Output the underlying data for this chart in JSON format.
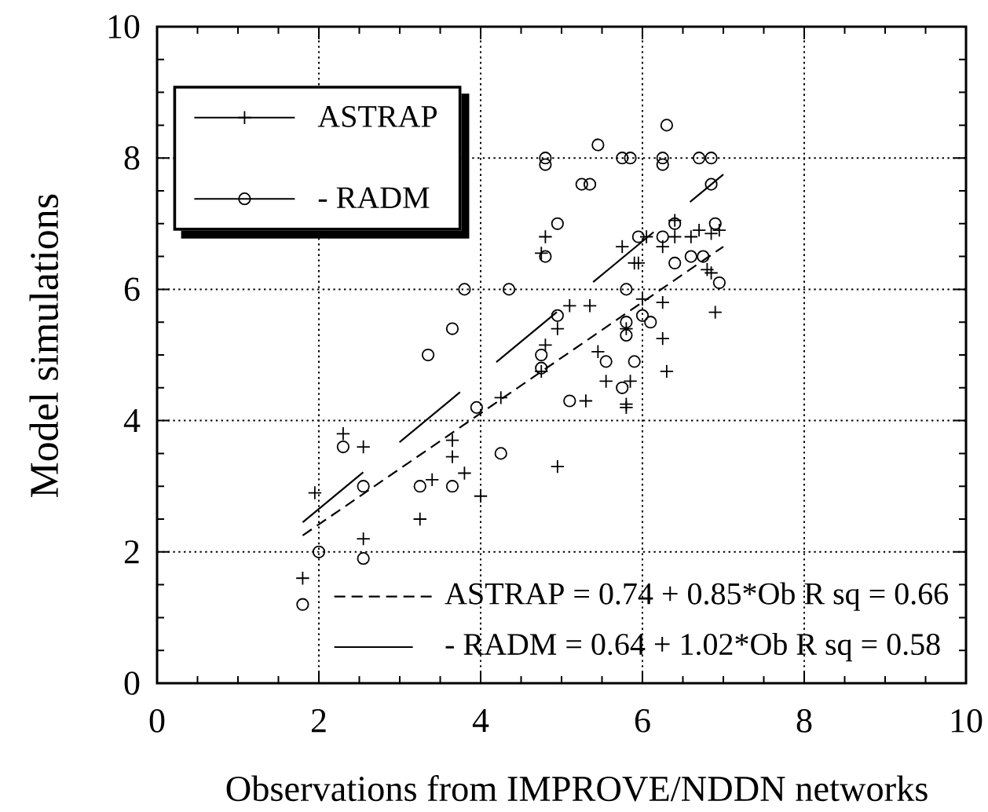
{
  "chart_data": {
    "type": "scatter",
    "xlabel": "Observations from IMPROVE/NDDN networks",
    "ylabel": "Model simulations",
    "xlim": [
      0,
      10
    ],
    "ylim": [
      0,
      10
    ],
    "xticks": [
      0,
      2,
      4,
      6,
      8,
      10
    ],
    "yticks": [
      0,
      2,
      4,
      6,
      8,
      10
    ],
    "grid": true,
    "legend": "top left",
    "annotations": [
      "ASTRAP = 0.74 + 0.85*Ob R sq = 0.66",
      "- RADM = 0.64 + 1.02*Ob R sq = 0.58"
    ],
    "series": [
      {
        "name": "ASTRAP",
        "color": "#000000",
        "marker": "cross",
        "x": [
          1.8,
          1.95,
          2.3,
          2.55,
          2.55,
          3.25,
          3.4,
          3.65,
          3.65,
          3.8,
          4.0,
          4.25,
          4.8,
          4.75,
          4.8,
          4.75,
          4.95,
          4.95,
          5.1,
          5.3,
          5.35,
          5.45,
          5.55,
          5.75,
          5.8,
          5.8,
          5.8,
          5.85,
          5.9,
          5.95,
          6.0,
          6.05,
          6.25,
          6.25,
          6.25,
          6.3,
          6.4,
          6.4,
          6.6,
          6.7,
          6.8,
          6.85,
          6.85,
          6.95,
          6.9
        ],
        "values": [
          1.6,
          2.9,
          3.8,
          3.6,
          2.2,
          2.5,
          3.1,
          3.7,
          3.45,
          3.2,
          2.85,
          4.35,
          6.8,
          6.55,
          5.15,
          4.75,
          3.3,
          5.4,
          5.75,
          4.3,
          5.75,
          5.05,
          4.6,
          6.65,
          4.25,
          4.2,
          5.4,
          4.6,
          6.4,
          6.4,
          5.85,
          6.8,
          6.65,
          5.8,
          5.25,
          4.75,
          7.05,
          6.8,
          6.8,
          6.9,
          6.3,
          6.25,
          6.85,
          6.9,
          5.65
        ]
      },
      {
        "name": "- RADM",
        "color": "#000000",
        "marker": "circle",
        "x": [
          1.8,
          2.0,
          2.3,
          2.55,
          2.55,
          3.25,
          3.35,
          3.65,
          3.65,
          3.8,
          3.95,
          4.25,
          4.35,
          4.75,
          4.75,
          4.8,
          4.8,
          4.8,
          4.95,
          4.95,
          5.1,
          5.25,
          5.35,
          5.45,
          5.55,
          5.75,
          5.85,
          5.75,
          5.8,
          5.8,
          5.8,
          5.9,
          5.95,
          6.0,
          6.1,
          6.25,
          6.25,
          6.25,
          6.3,
          6.4,
          6.4,
          6.6,
          6.7,
          6.85,
          6.75,
          6.85,
          6.9,
          6.95
        ],
        "values": [
          1.2,
          2.0,
          3.6,
          3.0,
          1.9,
          3.0,
          5.0,
          3.0,
          5.4,
          6.0,
          4.2,
          3.5,
          6.0,
          5.0,
          4.8,
          6.5,
          7.9,
          8.0,
          7.0,
          5.6,
          4.3,
          7.6,
          7.6,
          8.2,
          4.9,
          8.0,
          8.0,
          4.5,
          5.3,
          5.5,
          6.0,
          4.9,
          6.8,
          5.6,
          5.5,
          6.8,
          7.9,
          8.0,
          8.5,
          6.4,
          7.0,
          6.5,
          8.0,
          8.0,
          6.5,
          7.6,
          7.0,
          6.1
        ]
      },
      {
        "type": "line",
        "color": "#000000",
        "line_style": "dashed",
        "x": [
          1.8,
          7.0
        ],
        "values": [
          2.25,
          6.65
        ]
      },
      {
        "type": "line",
        "color": "#000000",
        "line_style": "dashed",
        "x": [
          1.8,
          7.0
        ],
        "values": [
          2.45,
          7.75
        ]
      }
    ]
  }
}
